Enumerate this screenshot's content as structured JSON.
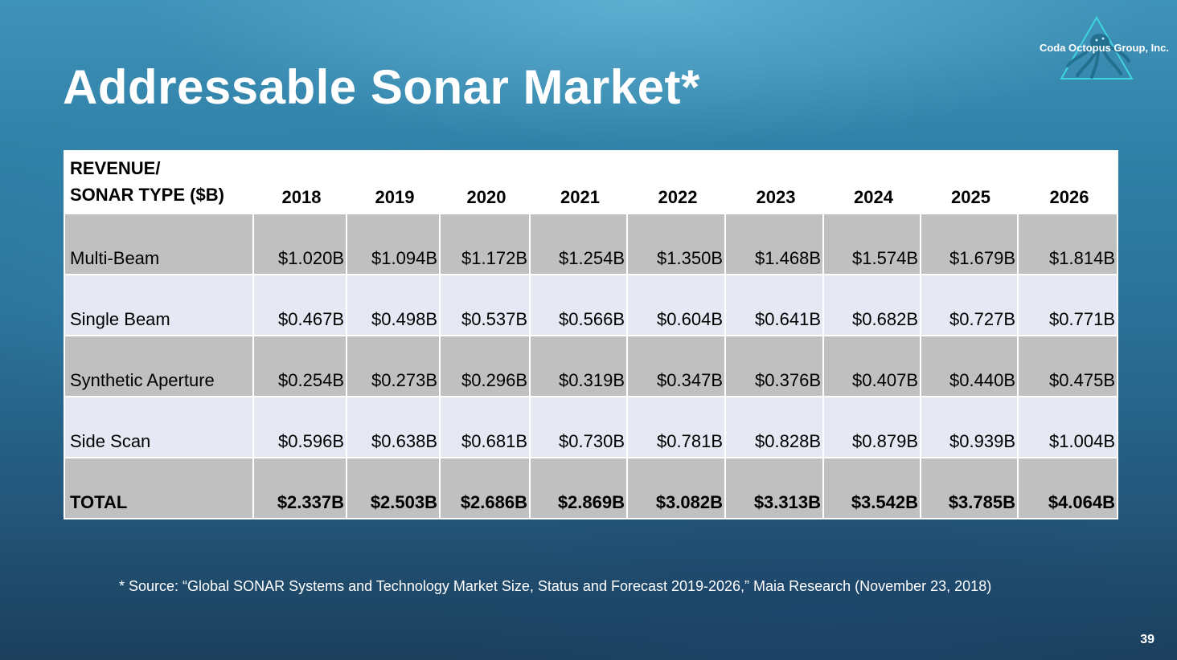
{
  "slide": {
    "title": "Addressable Sonar Market*",
    "brand": "Coda Octopus Group, Inc.",
    "page_number": "39"
  },
  "table": {
    "header_line1": "REVENUE/",
    "header_line2": "SONAR TYPE ($B)",
    "years": [
      "2018",
      "2019",
      "2020",
      "2021",
      "2022",
      "2023",
      "2024",
      "2025",
      "2026"
    ],
    "rows": [
      {
        "label": "Multi-Beam",
        "values": [
          "$1.020B",
          "$1.094B",
          "$1.172B",
          "$1.254B",
          "$1.350B",
          "$1.468B",
          "$1.574B",
          "$1.679B",
          "$1.814B"
        ]
      },
      {
        "label": "Single Beam",
        "values": [
          "$0.467B",
          "$0.498B",
          "$0.537B",
          "$0.566B",
          "$0.604B",
          "$0.641B",
          "$0.682B",
          "$0.727B",
          "$0.771B"
        ]
      },
      {
        "label": "Synthetic Aperture",
        "values": [
          "$0.254B",
          "$0.273B",
          "$0.296B",
          "$0.319B",
          "$0.347B",
          "$0.376B",
          "$0.407B",
          "$0.440B",
          "$0.475B"
        ]
      },
      {
        "label": "Side Scan",
        "values": [
          "$0.596B",
          "$0.638B",
          "$0.681B",
          "$0.730B",
          "$0.781B",
          "$0.828B",
          "$0.879B",
          "$0.939B",
          "$1.004B"
        ]
      },
      {
        "label": "TOTAL",
        "values": [
          "$2.337B",
          "$2.503B",
          "$2.686B",
          "$2.869B",
          "$3.082B",
          "$3.313B",
          "$3.542B",
          "$3.785B",
          "$4.064B"
        ]
      }
    ]
  },
  "footnote": "* Source: “Global SONAR Systems and Technology Market Size, Status and Forecast 2019-2026,” Maia Research (November 23, 2018)",
  "colors": {
    "row_gray": "#c0c0c0",
    "row_light": "#e6e9f3",
    "header_bg": "#ffffff",
    "logo_accent": "#3fd3e0"
  },
  "icons": {
    "logo": "octopus-triangle-logo-icon"
  }
}
